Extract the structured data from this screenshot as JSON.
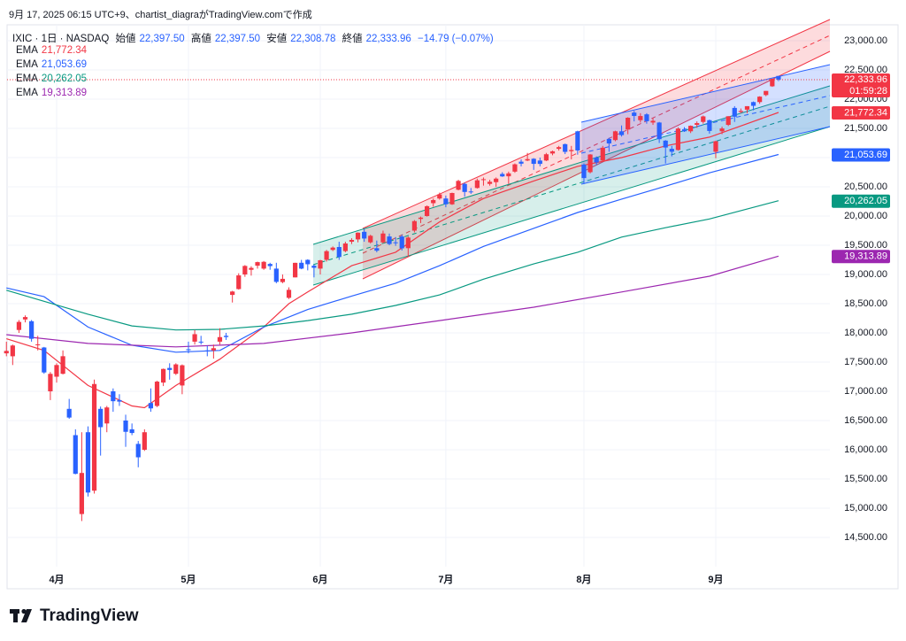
{
  "header": {
    "credit": "9月 17, 2025 06:15 UTC+9、chartist_diagraがTradingView.comで作成",
    "symbol": "IXIC · 1日 · NASDAQ",
    "ohlc_names": [
      "始値",
      "高値",
      "安値",
      "終値"
    ],
    "ohlc_labels": [
      "22,397.50",
      "22,397.50",
      "22,308.78",
      "22,333.96"
    ],
    "change": "−14.79 (−0.07%)"
  },
  "footer": {
    "logo": "TradingView"
  },
  "chart_data": {
    "type": "candlestick",
    "up_color": "#f23645",
    "down_color": "#2962ff",
    "grid": true,
    "categories": [
      null,
      null,
      null,
      null,
      null,
      null,
      null,
      null,
      "4月",
      null,
      null,
      null,
      null,
      null,
      null,
      null,
      null,
      null,
      null,
      null,
      null,
      null,
      null,
      null,
      null,
      null,
      null,
      null,
      null,
      "5月",
      null,
      null,
      null,
      null,
      null,
      null,
      null,
      null,
      null,
      null,
      null,
      null,
      null,
      null,
      null,
      null,
      null,
      null,
      null,
      null,
      "6月",
      null,
      null,
      null,
      null,
      null,
      null,
      null,
      null,
      null,
      null,
      null,
      null,
      null,
      null,
      null,
      null,
      null,
      null,
      null,
      "7月",
      null,
      null,
      null,
      null,
      null,
      null,
      null,
      null,
      null,
      null,
      null,
      null,
      null,
      null,
      null,
      null,
      null,
      null,
      null,
      null,
      null,
      "8月",
      null,
      null,
      null,
      null,
      null,
      null,
      null,
      null,
      null,
      null,
      null,
      null,
      null,
      null,
      null,
      null,
      null,
      null,
      null,
      null,
      "9月",
      null,
      null,
      null,
      null,
      null,
      null,
      null,
      null,
      null,
      null
    ],
    "open": [
      17650,
      17600,
      18050,
      18230,
      18200,
      17800,
      17750,
      17000,
      17250,
      17300,
      16700,
      16250,
      14900,
      16300,
      15300,
      16700,
      16450,
      17000,
      16850,
      16500,
      16350,
      16100,
      16000,
      16800,
      16750,
      17150,
      17400,
      17300,
      17100,
      17720,
      17850,
      17850,
      17700,
      17700,
      17850,
      17950,
      18650,
      18750,
      19000,
      19080,
      19150,
      19100,
      19180,
      19100,
      18870,
      18600,
      18950,
      19200,
      19250,
      19150,
      19100,
      19250,
      19420,
      19470,
      19400,
      19560,
      19600,
      19730,
      19550,
      19450,
      19550,
      19650,
      19550,
      19650,
      19450,
      19750,
      19950,
      20000,
      20220,
      20300,
      20300,
      20200,
      20450,
      20550,
      20420,
      20480,
      20620,
      20550,
      20580,
      20720,
      20680,
      20760,
      20930,
      20950,
      20980,
      20950,
      20950,
      21070,
      21150,
      21230,
      21110,
      21450,
      20880,
      20750,
      21000,
      20950,
      21320,
      21300,
      21450,
      21480,
      21770,
      21640,
      21740,
      21600,
      21600,
      21290,
      21150,
      21130,
      21470,
      21450,
      21560,
      21610,
      21640,
      21100,
      21450,
      21560,
      21850,
      21780,
      21820,
      21950,
      21950,
      22070,
      22220,
      22397.5
    ],
    "high": [
      17850,
      17800,
      18220,
      18300,
      18220,
      17950,
      17760,
      17330,
      17480,
      17700,
      16870,
      16350,
      16300,
      16400,
      17200,
      16740,
      16750,
      17050,
      16950,
      16600,
      16450,
      16150,
      16350,
      17050,
      17180,
      17390,
      17480,
      17480,
      17460,
      17850,
      18050,
      17950,
      17780,
      17800,
      18080,
      18000,
      18720,
      19020,
      19160,
      19140,
      19220,
      19230,
      19200,
      19200,
      19000,
      18780,
      19200,
      19250,
      19260,
      19170,
      19250,
      19420,
      19480,
      19560,
      19560,
      19620,
      19720,
      19780,
      19680,
      19580,
      19750,
      19700,
      19640,
      19680,
      19650,
      19930,
      19990,
      20180,
      20300,
      20400,
      20350,
      20400,
      20620,
      20570,
      20480,
      20640,
      20660,
      20620,
      20660,
      20750,
      20760,
      20900,
      20970,
      21080,
      20990,
      21000,
      21080,
      21120,
      21200,
      21240,
      21200,
      21460,
      20900,
      21060,
      21020,
      21200,
      21340,
      21460,
      21550,
      21690,
      21800,
      21760,
      21760,
      21680,
      21610,
      21300,
      21200,
      21520,
      21520,
      21550,
      21620,
      21720,
      21650,
      21290,
      21530,
      21710,
      21880,
      21840,
      21880,
      21960,
      22050,
      22140,
      22350,
      22397.5
    ],
    "low": [
      17600,
      17450,
      18000,
      18180,
      17850,
      17700,
      17300,
      16850,
      17150,
      17290,
      16530,
      15580,
      14780,
      15200,
      15250,
      15900,
      16300,
      16650,
      16750,
      16050,
      16250,
      15700,
      15980,
      16650,
      16730,
      17090,
      17200,
      17280,
      16950,
      17650,
      17800,
      17800,
      17600,
      17560,
      17800,
      17880,
      18520,
      18740,
      18960,
      18980,
      19100,
      19080,
      19080,
      18850,
      18850,
      18580,
      18950,
      19090,
      19070,
      18950,
      19000,
      19220,
      19400,
      19250,
      19380,
      19520,
      19550,
      19560,
      19530,
      19380,
      19530,
      19500,
      19490,
      19410,
      19300,
      19720,
      19880,
      19990,
      20160,
      20280,
      20150,
      20190,
      20440,
      20330,
      20380,
      20470,
      20520,
      20520,
      20500,
      20670,
      20550,
      20740,
      20850,
      20940,
      20790,
      20850,
      20940,
      21040,
      21120,
      21060,
      20970,
      21050,
      20550,
      20730,
      20870,
      20940,
      21100,
      21280,
      21360,
      21400,
      21620,
      21600,
      21580,
      21560,
      21250,
      20900,
      21020,
      21120,
      21440,
      21420,
      21510,
      21580,
      21410,
      20990,
      21400,
      21540,
      21610,
      21760,
      21760,
      21810,
      21920,
      22050,
      22210,
      22308.78
    ],
    "close": [
      17692,
      17784,
      18188,
      18271,
      17899,
      17804,
      17323,
      17299,
      17450,
      17601,
      16551,
      15588,
      15603,
      15268,
      17125,
      16387,
      16724,
      16831,
      16824,
      16307,
      16287,
      15871,
      16300,
      16708,
      17166,
      17383,
      17366,
      17461,
      17446,
      17711,
      17978,
      17844,
      17690,
      17738,
      17928,
      17929,
      18708,
      18984,
      19146,
      19112,
      19211,
      19216,
      19143,
      18873,
      18925,
      18737,
      19199,
      19100,
      19175,
      19114,
      19243,
      19399,
      19460,
      19299,
      19530,
      19591,
      19715,
      19615,
      19662,
      19407,
      19701,
      19521,
      19547,
      19447,
      19631,
      19913,
      19973,
      20168,
      20273,
      20370,
      20202,
      20394,
      20601,
      20412,
      20418,
      20611,
      20630,
      20586,
      20640,
      20678,
      20730,
      20885,
      20896,
      20974,
      20893,
      20892,
      21057,
      21108,
      21179,
      21098,
      21130,
      21122,
      20650,
      21053,
      20917,
      21169,
      21242,
      21450,
      21385,
      21682,
      21713,
      21711,
      21623,
      21630,
      21315,
      21172,
      21100,
      21497,
      21450,
      21544,
      21590,
      21705,
      21456,
      21280,
      21498,
      21707,
      21700,
      21799,
      21880,
      21886,
      22043,
      22141,
      22349,
      22333.96
    ],
    "close_label": "22,333.96",
    "countdown": "01:59:28",
    "ema": [
      {
        "name": "EMA",
        "color": "#f23645",
        "x": [
          0,
          6,
          13,
          20,
          22,
          27,
          34,
          41,
          45,
          48,
          55,
          62,
          69,
          76,
          84,
          91,
          98,
          105,
          112,
          123
        ],
        "values": [
          17900,
          17700,
          17100,
          16750,
          16720,
          17100,
          17550,
          18100,
          18500,
          18700,
          19150,
          19380,
          19900,
          20300,
          20600,
          20850,
          21000,
          21200,
          21350,
          21772.34
        ],
        "value_label": "21,772.34"
      },
      {
        "name": "EMA",
        "color": "#2962ff",
        "x": [
          0,
          6,
          13,
          20,
          27,
          34,
          41,
          48,
          55,
          62,
          69,
          76,
          84,
          91,
          98,
          105,
          112,
          123
        ],
        "values": [
          18770,
          18620,
          18100,
          17790,
          17670,
          17700,
          18100,
          18400,
          18630,
          18850,
          19150,
          19480,
          19790,
          20060,
          20290,
          20510,
          20740,
          21053.69
        ],
        "value_label": "21,053.69"
      },
      {
        "name": "EMA",
        "color": "#089981",
        "x": [
          0,
          13,
          20,
          27,
          34,
          41,
          48,
          55,
          62,
          69,
          76,
          84,
          91,
          98,
          105,
          112,
          123
        ],
        "values": [
          18730,
          18320,
          18120,
          18050,
          18060,
          18120,
          18210,
          18320,
          18470,
          18650,
          18920,
          19180,
          19380,
          19640,
          19800,
          19950,
          20262.05
        ],
        "value_label": "20,262.05"
      },
      {
        "name": "EMA",
        "color": "#9c27b0",
        "x": [
          0,
          13,
          27,
          41,
          55,
          69,
          84,
          98,
          112,
          123
        ],
        "values": [
          17970,
          17820,
          17760,
          17820,
          18000,
          18210,
          18440,
          18700,
          18970,
          19313.89
        ],
        "value_label": "19,313.89"
      }
    ],
    "ylim": [
      14000,
      23272.7
    ],
    "yticks": [
      {
        "value": 14500,
        "label": "14,500.00"
      },
      {
        "value": 15000,
        "label": "15,000.00"
      },
      {
        "value": 15500,
        "label": "15,500.00"
      },
      {
        "value": 16000,
        "label": "16,000.00"
      },
      {
        "value": 16500,
        "label": "16,500.00"
      },
      {
        "value": 17000,
        "label": "17,000.00"
      },
      {
        "value": 17500,
        "label": "17,500.00"
      },
      {
        "value": 18000,
        "label": "18,000.00"
      },
      {
        "value": 18500,
        "label": "18,500.00"
      },
      {
        "value": 19000,
        "label": "19,000.00"
      },
      {
        "value": 19500,
        "label": "19,500.00"
      },
      {
        "value": 20000,
        "label": "20,000.00"
      },
      {
        "value": 20500,
        "label": "20,500.00"
      },
      {
        "value": 21000,
        "label": "21,000.00"
      },
      {
        "value": 21500,
        "label": "21,500.00"
      },
      {
        "value": 22000,
        "label": "22,000.00"
      },
      {
        "value": 22500,
        "label": "22,500.00"
      },
      {
        "value": 23000,
        "label": "23,000.00"
      }
    ]
  }
}
